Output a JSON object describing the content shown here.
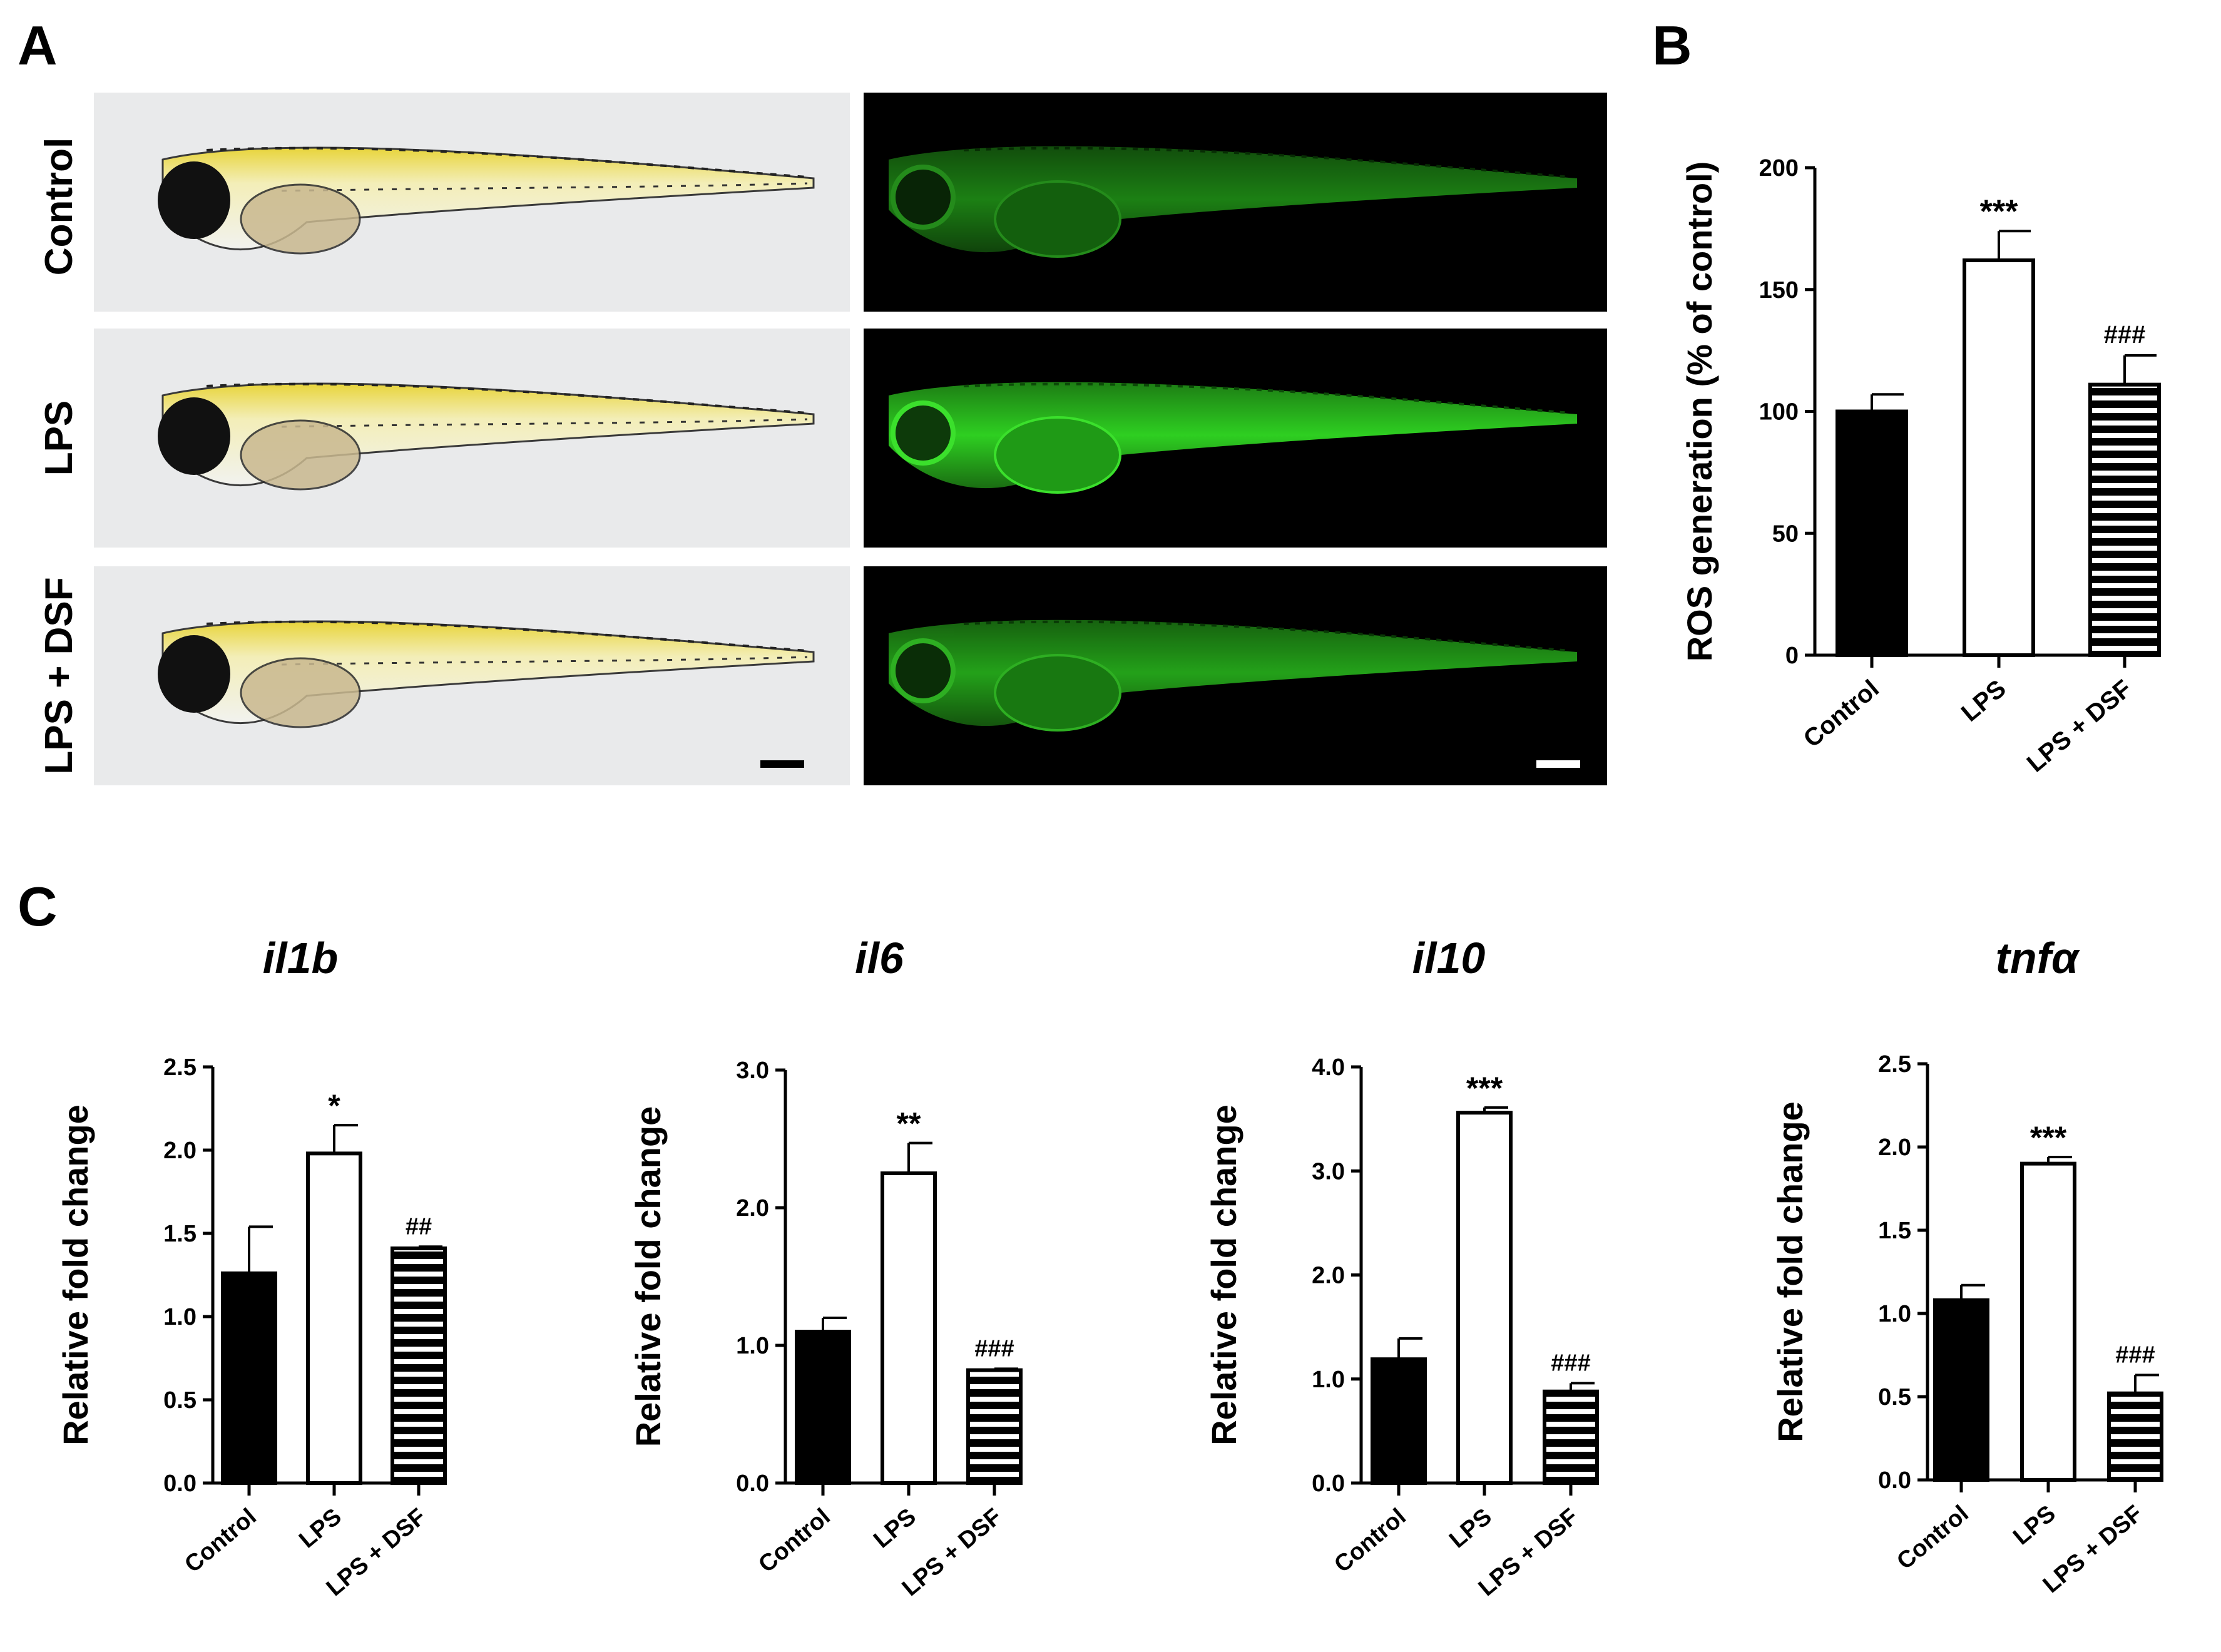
{
  "panels": {
    "a": "A",
    "b": "B",
    "c": "C"
  },
  "panel_a": {
    "rows": [
      "Control",
      "LPS",
      "LPS + DSF"
    ],
    "columns": [
      "brightfield",
      "fluorescence"
    ],
    "scale_bar": "shown on bottom row, both columns",
    "colors": {
      "background_bf": "#e9eaeb",
      "background_fl": "#000000",
      "fluor": "#2ccc1e",
      "yolk": "#e4cc28"
    }
  },
  "chart_data": [
    {
      "type": "bar",
      "panel": "B",
      "title": "",
      "ylabel": "ROS generation (% of control)",
      "xlabel": "",
      "categories": [
        "Control",
        "LPS",
        "LPS + DSF"
      ],
      "values": [
        100,
        162,
        111
      ],
      "errors": [
        7,
        12,
        12
      ],
      "annotations": [
        "",
        "***",
        "###"
      ],
      "ylim": [
        0,
        200
      ],
      "yticks": [
        "0",
        "50",
        "100",
        "150",
        "200"
      ],
      "fills": [
        "solid",
        "open",
        "striped"
      ]
    },
    {
      "type": "bar",
      "panel": "C",
      "title": "il1b",
      "ylabel": "Relative fold change",
      "xlabel": "",
      "categories": [
        "Control",
        "LPS",
        "LPS + DSF"
      ],
      "values": [
        1.26,
        1.98,
        1.41
      ],
      "errors": [
        0.28,
        0.17,
        0.01
      ],
      "annotations": [
        "",
        "*",
        "##"
      ],
      "ylim": [
        0,
        2.5
      ],
      "yticks": [
        "0.0",
        "0.5",
        "1.0",
        "1.5",
        "2.0",
        "2.5"
      ],
      "fills": [
        "solid",
        "open",
        "striped"
      ]
    },
    {
      "type": "bar",
      "panel": "C",
      "title": "il6",
      "ylabel": "Relative fold change",
      "xlabel": "",
      "categories": [
        "Control",
        "LPS",
        "LPS + DSF"
      ],
      "values": [
        1.1,
        2.25,
        0.82
      ],
      "errors": [
        0.1,
        0.22,
        0.01
      ],
      "annotations": [
        "",
        "**",
        "###"
      ],
      "ylim": [
        0,
        3.0
      ],
      "yticks": [
        "0.0",
        "1.0",
        "2.0",
        "3.0"
      ],
      "fills": [
        "solid",
        "open",
        "striped"
      ]
    },
    {
      "type": "bar",
      "panel": "C",
      "title": "il10",
      "ylabel": "Relative fold change",
      "xlabel": "",
      "categories": [
        "Control",
        "LPS",
        "LPS + DSF"
      ],
      "values": [
        1.19,
        3.56,
        0.88
      ],
      "errors": [
        0.2,
        0.05,
        0.08
      ],
      "annotations": [
        "",
        "***",
        "###"
      ],
      "ylim": [
        0,
        4.0
      ],
      "yticks": [
        "0.0",
        "1.0",
        "2.0",
        "3.0",
        "4.0"
      ],
      "fills": [
        "solid",
        "open",
        "striped"
      ]
    },
    {
      "type": "bar",
      "panel": "C",
      "title": "tnfα",
      "ylabel": "Relative fold change",
      "xlabel": "",
      "categories": [
        "Control",
        "LPS",
        "LPS + DSF"
      ],
      "values": [
        1.08,
        1.9,
        0.52
      ],
      "errors": [
        0.09,
        0.04,
        0.11
      ],
      "annotations": [
        "",
        "***",
        "###"
      ],
      "ylim": [
        0,
        2.5
      ],
      "yticks": [
        "0.0",
        "0.5",
        "1.0",
        "1.5",
        "2.0",
        "2.5"
      ],
      "fills": [
        "solid",
        "open",
        "striped"
      ]
    }
  ]
}
